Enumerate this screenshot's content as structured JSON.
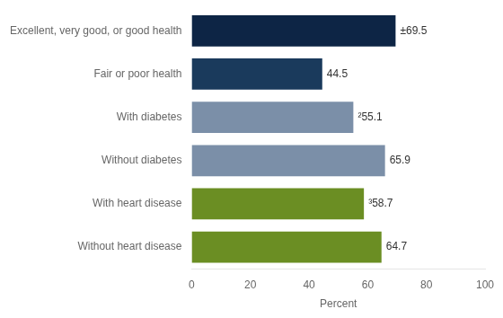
{
  "chart_data": {
    "type": "bar",
    "orientation": "horizontal",
    "categories": [
      "Without heart disease",
      "With heart disease",
      "Without diabetes",
      "With diabetes",
      "Fair or poor health",
      "Excellent, very good, or good health"
    ],
    "values": [
      64.7,
      58.7,
      65.9,
      55.1,
      44.5,
      69.5
    ],
    "value_labels": [
      "64.7",
      "³58.7",
      "65.9",
      "²55.1",
      "44.5",
      "±69.5"
    ],
    "data_labels": true,
    "colors": [
      "#6b8e23",
      "#6b8e23",
      "#7b8fa8",
      "#7b8fa8",
      "#1a3a5c",
      "#0d2545"
    ],
    "xlabel": "Percent",
    "xlim": [
      0,
      100
    ],
    "xticks": [
      0,
      20,
      40,
      60,
      80,
      100
    ],
    "grid": false
  }
}
